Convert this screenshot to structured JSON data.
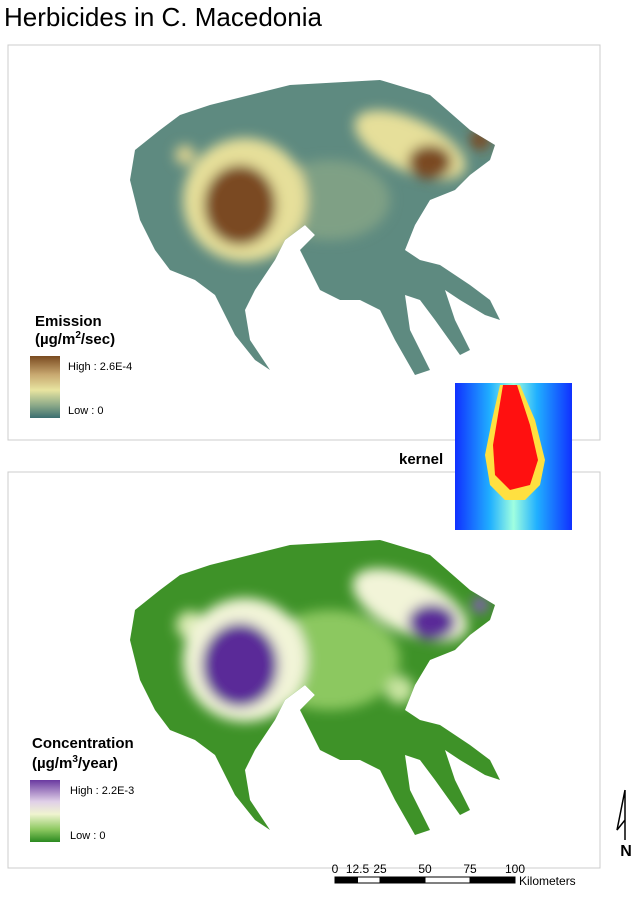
{
  "title": "Herbicides in C. Macedonia",
  "emission_map": {
    "legend_title": "Emission",
    "unit_prefix": "(µg/m",
    "unit_exponent": "2",
    "unit_suffix": "/sec)",
    "high_label": "High : 2.6E-4",
    "low_label": "Low : 0"
  },
  "kernel": {
    "label": "kernel"
  },
  "concentration_map": {
    "legend_title": "Concentration",
    "unit_prefix": "(µg/m",
    "unit_exponent": "3",
    "unit_suffix": "/year)",
    "high_label": "High : 2.2E-3",
    "low_label": "Low : 0"
  },
  "scale_bar": {
    "ticks": [
      0,
      12.5,
      25,
      50,
      75,
      100
    ],
    "unit": "Kilometers"
  },
  "north_arrow": {
    "label": "N"
  }
}
